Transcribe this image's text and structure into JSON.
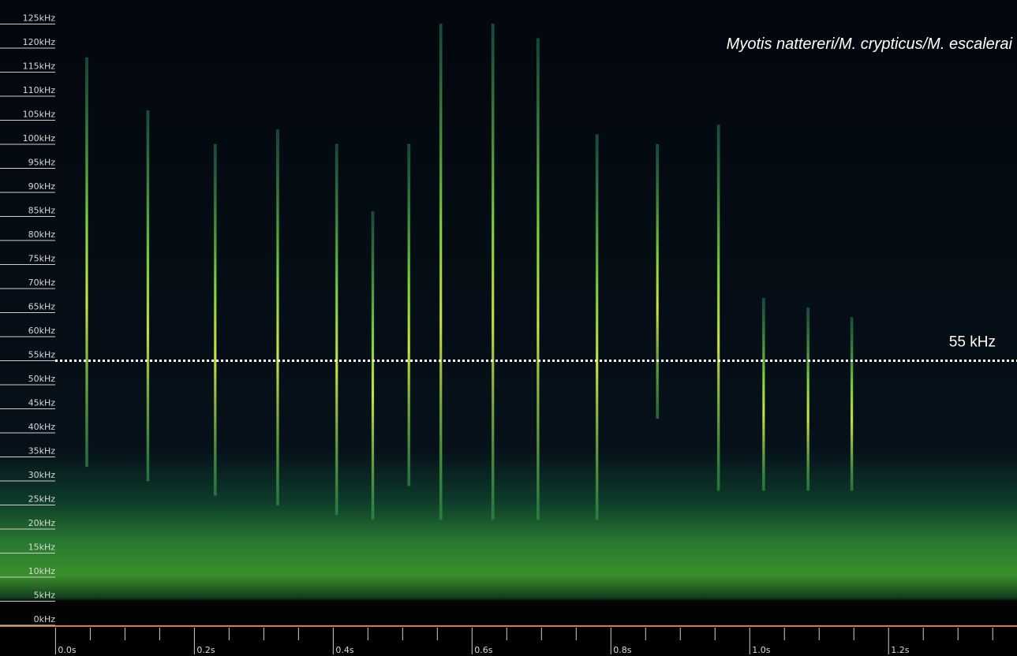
{
  "chart_data": {
    "type": "spectrogram",
    "annotation": "Myotis nattereri/M. crypticus/M. escalerai",
    "reference_line": {
      "value": 55,
      "label": "55 kHz"
    },
    "ylim": [
      0,
      130
    ],
    "yticks": [
      {
        "value": 0,
        "label": "0kHz"
      },
      {
        "value": 5,
        "label": "5kHz"
      },
      {
        "value": 10,
        "label": "10kHz"
      },
      {
        "value": 15,
        "label": "15kHz"
      },
      {
        "value": 20,
        "label": "20kHz"
      },
      {
        "value": 25,
        "label": "25kHz"
      },
      {
        "value": 30,
        "label": "30kHz"
      },
      {
        "value": 35,
        "label": "35kHz"
      },
      {
        "value": 40,
        "label": "40kHz"
      },
      {
        "value": 45,
        "label": "45kHz"
      },
      {
        "value": 50,
        "label": "50kHz"
      },
      {
        "value": 55,
        "label": "55kHz"
      },
      {
        "value": 60,
        "label": "60kHz"
      },
      {
        "value": 65,
        "label": "65kHz"
      },
      {
        "value": 70,
        "label": "70kHz"
      },
      {
        "value": 75,
        "label": "75kHz"
      },
      {
        "value": 80,
        "label": "80kHz"
      },
      {
        "value": 85,
        "label": "85kHz"
      },
      {
        "value": 90,
        "label": "90kHz"
      },
      {
        "value": 95,
        "label": "95kHz"
      },
      {
        "value": 100,
        "label": "100kHz"
      },
      {
        "value": 105,
        "label": "105kHz"
      },
      {
        "value": 110,
        "label": "110kHz"
      },
      {
        "value": 115,
        "label": "115kHz"
      },
      {
        "value": 120,
        "label": "120kHz"
      },
      {
        "value": 125,
        "label": "125kHz"
      }
    ],
    "xlim": [
      -0.08,
      1.385
    ],
    "xticks": [
      {
        "value": 0,
        "label": "0.0s"
      },
      {
        "value": 0.2,
        "label": "0.2s"
      },
      {
        "value": 0.4,
        "label": "0.4s"
      },
      {
        "value": 0.6,
        "label": "0.6s"
      },
      {
        "value": 0.8,
        "label": "0.8s"
      },
      {
        "value": 1.0,
        "label": "1.0s"
      },
      {
        "value": 1.2,
        "label": "1.2s"
      }
    ],
    "xminorticks": [
      0.05,
      0.1,
      0.15,
      0.25,
      0.3,
      0.35,
      0.45,
      0.5,
      0.55,
      0.65,
      0.7,
      0.75,
      0.85,
      0.9,
      0.95,
      1.05,
      1.1,
      1.15,
      1.25,
      1.3,
      1.35
    ],
    "calls": {
      "color": "#4cc04a",
      "t": [
        0.045,
        0.133,
        0.23,
        0.32,
        0.405,
        0.457,
        0.509,
        0.555,
        0.63,
        0.695,
        0.78,
        0.867,
        0.955,
        1.02,
        1.084,
        1.147
      ],
      "fmin": [
        33,
        30,
        27,
        25,
        23,
        22,
        29,
        22,
        22,
        22,
        22,
        43,
        28,
        28,
        28,
        28
      ],
      "fmax": [
        118,
        107,
        100,
        103,
        100,
        86,
        100,
        125,
        125,
        122,
        102,
        100,
        104,
        68,
        66,
        64
      ]
    }
  }
}
